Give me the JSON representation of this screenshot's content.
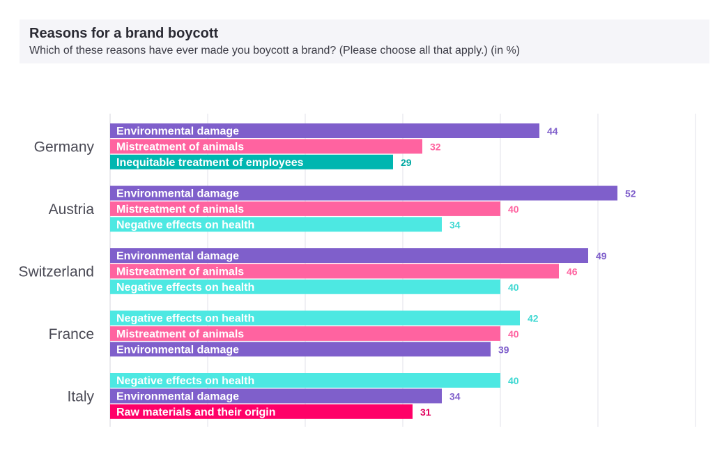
{
  "header": {
    "title": "Reasons for a brand boycott",
    "subtitle": "Which of these reasons have ever made you boycott a brand? (Please choose all that apply.) (in %)"
  },
  "colors": {
    "Environmental damage": "#7f5fcb",
    "Mistreatment of animals": "#ff63a0",
    "Inequitable treatment of employees": "#00b6b0",
    "Negative effects on health": "#4de8e2",
    "Raw materials and their origin": "#ff0068"
  },
  "label_colors": {
    "Environmental damage": "#7f5fcb",
    "Mistreatment of animals": "#ff63a0",
    "Inequitable treatment of employees": "#00a8a2",
    "Negative effects on health": "#3fd8d2",
    "Raw materials and their origin": "#e0005c"
  },
  "chart_data": {
    "type": "bar",
    "orientation": "horizontal",
    "title": "Reasons for a brand boycott",
    "subtitle": "Which of these reasons have ever made you boycott a brand? (Please choose all that apply.) (in %)",
    "xlim": [
      0,
      60
    ],
    "grid": true,
    "groups": [
      {
        "country": "Germany",
        "bars": [
          {
            "label": "Environmental damage",
            "value": 44
          },
          {
            "label": "Mistreatment of animals",
            "value": 32
          },
          {
            "label": "Inequitable treatment of employees",
            "value": 29
          }
        ]
      },
      {
        "country": "Austria",
        "bars": [
          {
            "label": "Environmental damage",
            "value": 52
          },
          {
            "label": "Mistreatment of animals",
            "value": 40
          },
          {
            "label": "Negative effects on health",
            "value": 34
          }
        ]
      },
      {
        "country": "Switzerland",
        "bars": [
          {
            "label": "Environmental damage",
            "value": 49
          },
          {
            "label": "Mistreatment of animals",
            "value": 46
          },
          {
            "label": "Negative effects on health",
            "value": 40
          }
        ]
      },
      {
        "country": "France",
        "bars": [
          {
            "label": "Negative effects on health",
            "value": 42
          },
          {
            "label": "Mistreatment of animals",
            "value": 40
          },
          {
            "label": "Environmental damage",
            "value": 39
          }
        ]
      },
      {
        "country": "Italy",
        "bars": [
          {
            "label": "Negative effects on health",
            "value": 40
          },
          {
            "label": "Environmental damage",
            "value": 34
          },
          {
            "label": "Raw materials and their origin",
            "value": 31
          }
        ]
      }
    ]
  }
}
